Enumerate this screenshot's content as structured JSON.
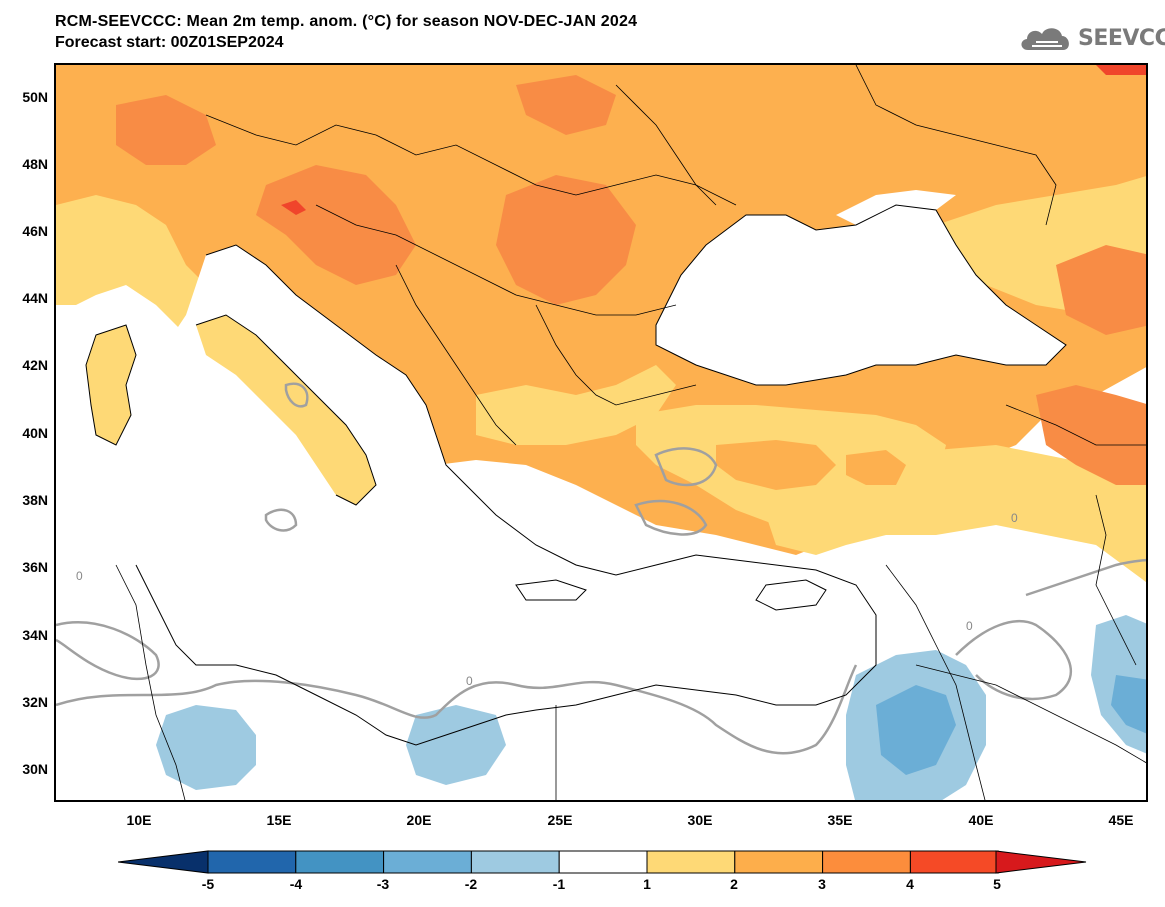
{
  "header": {
    "title": "RCM-SEEVCCC: Mean 2m temp. anom. (°C) for season NOV-DEC-JAN 2024",
    "subtitle": "Forecast start: 00Z01SEP2024",
    "logo_text": "SEEVCCC",
    "logo_icon": "cloud-logo-icon"
  },
  "map": {
    "lat_labels": [
      "50N",
      "48N",
      "46N",
      "44N",
      "42N",
      "40N",
      "38N",
      "36N",
      "34N",
      "32N",
      "30N"
    ],
    "lon_labels": [
      "10E",
      "15E",
      "20E",
      "25E",
      "30E",
      "35E",
      "40E",
      "45E"
    ],
    "lat_range": [
      29,
      51
    ],
    "lon_range": [
      7,
      46
    ],
    "contour_label": "0"
  },
  "colorbar": {
    "labels": [
      "-5",
      "-4",
      "-3",
      "-2",
      "-1",
      "1",
      "2",
      "3",
      "4",
      "5"
    ],
    "colors": [
      "#08306b",
      "#2166ac",
      "#4393c3",
      "#6baed6",
      "#9ecae1",
      "#ffffff",
      "#fed976",
      "#fdae4b",
      "#fc8d3c",
      "#f54a26",
      "#d7191c"
    ]
  },
  "colors": {
    "white_anomaly": "#ffffff",
    "light_orange": "#fed976",
    "orange": "#fdb04f",
    "dark_orange": "#f88c45",
    "red": "#f0452b",
    "light_blue": "#9ecae1",
    "mid_blue": "#6baed6",
    "contour_gray": "#a0a0a0",
    "border": "#000000"
  }
}
